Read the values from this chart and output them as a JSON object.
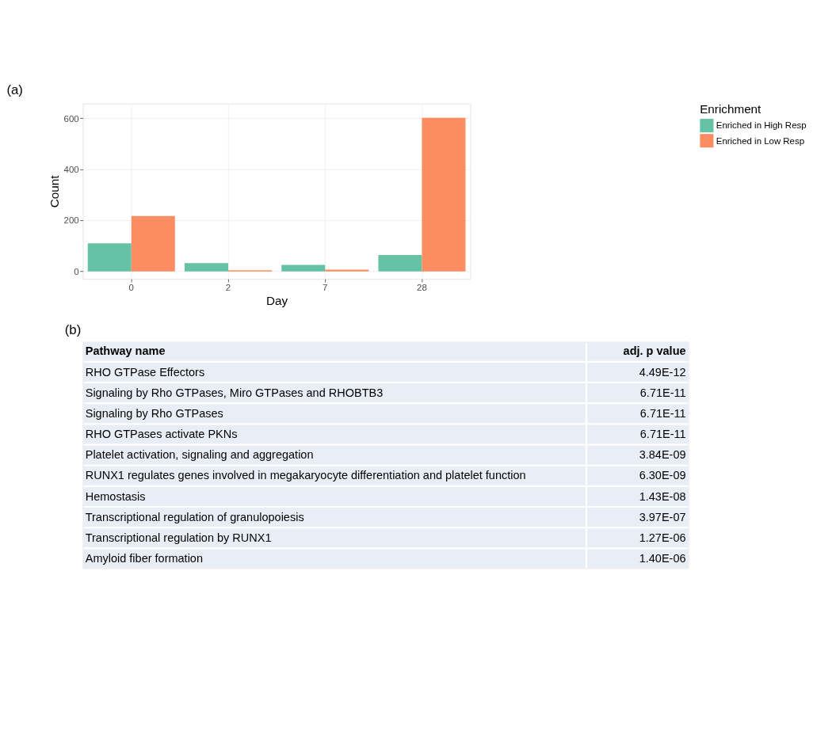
{
  "chart_data": [
    {
      "type": "bar",
      "title": "(a)",
      "xlabel": "Day",
      "ylabel": "Count",
      "legend_title": "Enrichment",
      "categories": [
        "0",
        "2",
        "7",
        "28"
      ],
      "series": [
        {
          "name": "Enriched in High Resp",
          "color": "#66c2a5",
          "values": [
            110,
            32,
            25,
            64
          ]
        },
        {
          "name": "Enriched in Low Resp",
          "color": "#fc8d62",
          "values": [
            217,
            4,
            7,
            602
          ]
        }
      ],
      "ylim": [
        -30,
        658
      ],
      "yticks": [
        0,
        200,
        400,
        600
      ],
      "grid": true,
      "legend": "right"
    },
    {
      "type": "other",
      "title": "(b)",
      "annotations": [
        "Pathway name",
        "adj. p value"
      ],
      "categories": [
        "RHO GTPase Effectors",
        "Signaling by Rho GTPases, Miro GTPases and RHOBTB3",
        "Signaling by Rho GTPases",
        "RHO GTPases activate PKNs",
        "Platelet activation, signaling and aggregation",
        "RUNX1 regulates genes involved in megakaryocyte differentiation and platelet function",
        "Hemostasis",
        "Transcriptional regulation of granulopoiesis",
        "Transcriptional regulation by RUNX1",
        "Amyloid fiber formation"
      ],
      "value_labels": [
        "4.49E-12",
        "6.71E-11",
        "6.71E-11",
        "6.71E-11",
        "3.84E-09",
        "6.30E-09",
        "1.43E-08",
        "3.97E-07",
        "1.27E-06",
        "1.40E-06"
      ]
    }
  ]
}
